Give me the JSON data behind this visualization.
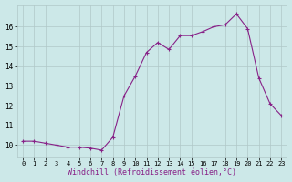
{
  "x": [
    0,
    1,
    2,
    3,
    4,
    5,
    6,
    7,
    8,
    9,
    10,
    11,
    12,
    13,
    14,
    15,
    16,
    17,
    18,
    19,
    20,
    21,
    22,
    23
  ],
  "y": [
    10.2,
    10.2,
    10.1,
    10.0,
    9.9,
    9.9,
    9.85,
    9.75,
    10.4,
    12.5,
    13.5,
    14.7,
    15.2,
    14.85,
    15.55,
    15.55,
    15.75,
    16.0,
    16.1,
    16.65,
    15.9,
    13.4,
    12.1,
    11.5
  ],
  "line_color": "#882288",
  "marker": "+",
  "marker_size": 3,
  "marker_lw": 0.8,
  "bg_color": "#cce8e8",
  "grid_color": "#b0c8c8",
  "xlabel": "Windchill (Refroidissement éolien,°C)",
  "xlabel_fontsize": 6,
  "yticks": [
    10,
    11,
    12,
    13,
    14,
    15,
    16
  ],
  "xticks": [
    0,
    1,
    2,
    3,
    4,
    5,
    6,
    7,
    8,
    9,
    10,
    11,
    12,
    13,
    14,
    15,
    16,
    17,
    18,
    19,
    20,
    21,
    22,
    23
  ],
  "ylim": [
    9.4,
    17.1
  ],
  "xlim": [
    -0.5,
    23.5
  ],
  "tick_fontsize": 5,
  "linewidth": 0.8
}
